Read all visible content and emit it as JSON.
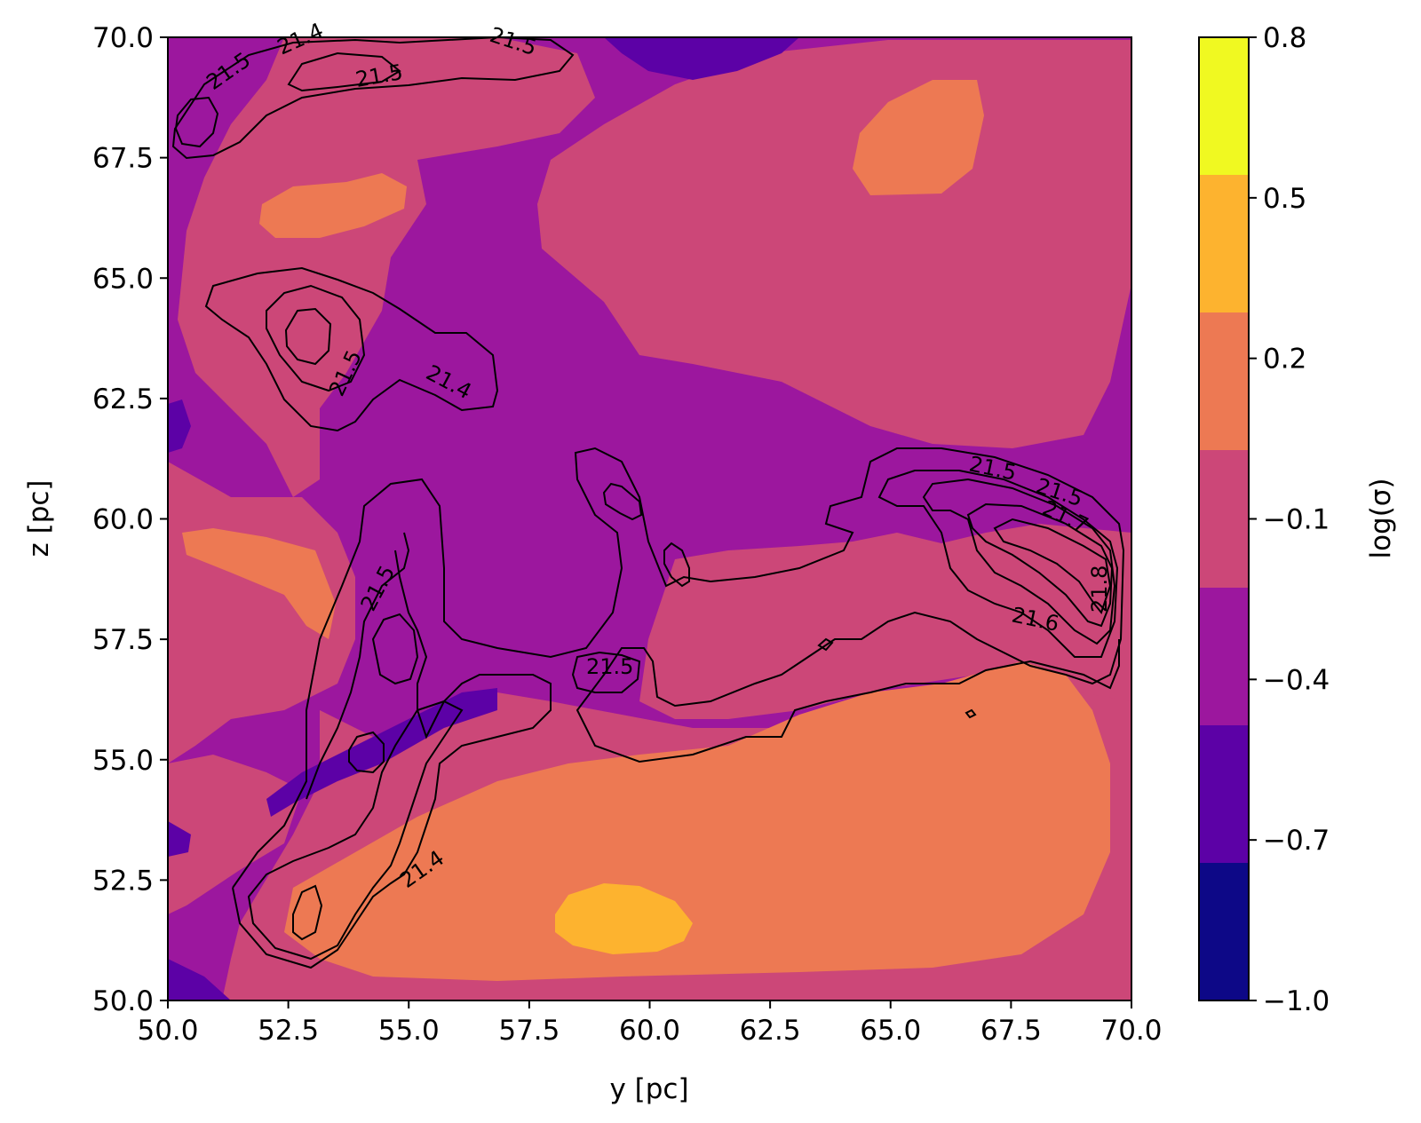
{
  "chart_data": {
    "type": "contourf_with_contours",
    "xlabel": "y [pc]",
    "ylabel": "z [pc]",
    "xlim": [
      50.0,
      70.0
    ],
    "ylim": [
      50.0,
      70.0
    ],
    "xticks": [
      "50.0",
      "52.5",
      "55.0",
      "57.5",
      "60.0",
      "62.5",
      "65.0",
      "67.5",
      "70.0"
    ],
    "yticks": [
      "50.0",
      "52.5",
      "55.0",
      "57.5",
      "60.0",
      "62.5",
      "65.0",
      "67.5",
      "70.0"
    ],
    "colorbar": {
      "label": "log(σ)",
      "ticks": [
        "0.8",
        "0.5",
        "0.2",
        "−0.1",
        "−0.4",
        "−0.7",
        "−1.0"
      ],
      "levels": [
        -1.0,
        -0.85,
        -0.7,
        -0.55,
        -0.4,
        -0.25,
        -0.1,
        0.05,
        0.2,
        0.35,
        0.5,
        0.65,
        0.8
      ],
      "colors": [
        "#0d0887",
        "#5c01a6",
        "#9c179e",
        "#cc4778",
        "#ed7953",
        "#fdb32f",
        "#f0f921"
      ]
    },
    "contour_labels": [
      "21.4",
      "21.5",
      "21.5",
      "21.5",
      "21.5",
      "21.4",
      "21.5",
      "21.5",
      "21.5",
      "21.4",
      "21.5",
      "21.7",
      "21.6",
      "21.8"
    ],
    "grid": false
  }
}
